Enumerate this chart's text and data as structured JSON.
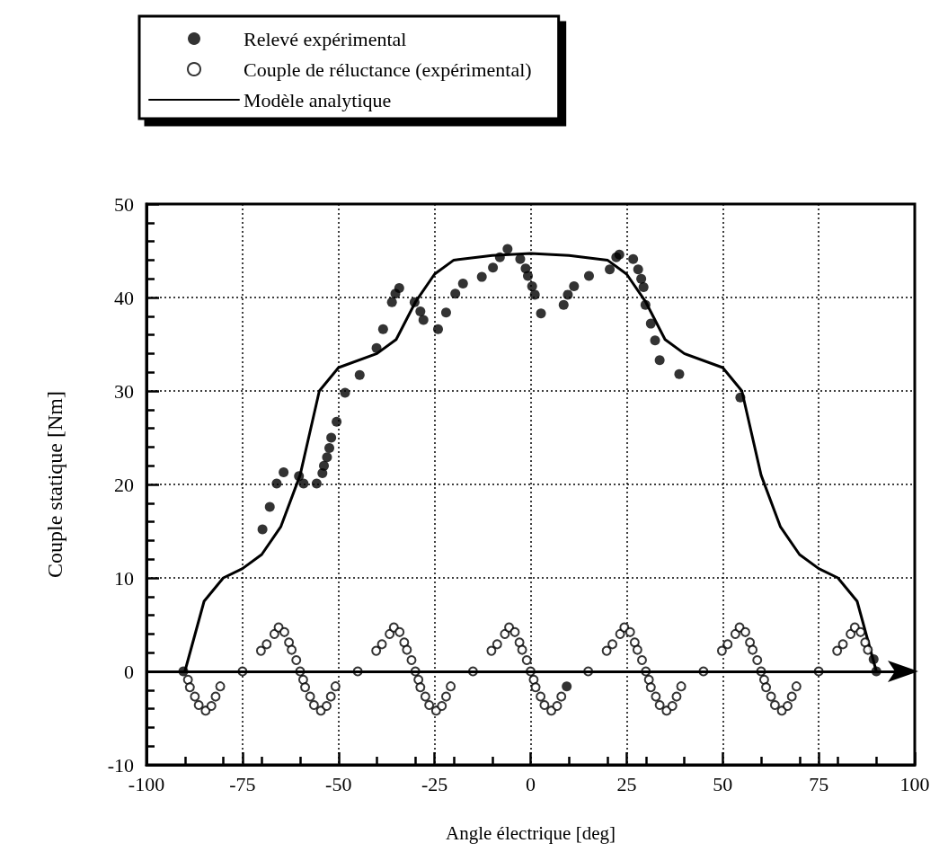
{
  "chart_data": {
    "type": "scatter",
    "xlabel": "Angle électrique [deg]",
    "ylabel": "Couple statique [Nm]",
    "xlim": [
      -100,
      100
    ],
    "xticks": [
      -100,
      -75,
      -50,
      -25,
      0,
      25,
      50,
      75,
      100
    ],
    "ylim": [
      -10,
      50
    ],
    "yticks": [
      -10,
      0,
      10,
      20,
      30,
      40,
      50
    ],
    "grid": true,
    "legend": "top left",
    "ref_lines": [
      {
        "axis": "y",
        "value": 0,
        "color": "#000000",
        "line_style": "solid"
      }
    ],
    "series": [
      {
        "name": "Relevé expérimental",
        "type": "scatter",
        "marker": "circle",
        "color": "#000000",
        "x": [
          -90.4,
          -69.8,
          -67.9,
          -66.1,
          -64.3,
          -60.3,
          -59.1,
          -55.7,
          -54.2,
          -53.8,
          -53.0,
          -52.4,
          -51.9,
          -50.5,
          -48.3,
          -44.5,
          -40.1,
          -38.4,
          -36.1,
          -35.2,
          -34.2,
          -30.2,
          -28.7,
          -27.9,
          -24.1,
          -22.0,
          -19.6,
          -17.6,
          -12.7,
          -9.8,
          -8.0,
          -6.0,
          -2.7,
          -1.3,
          -0.7,
          0.4,
          1.1,
          2.7,
          8.6,
          9.7,
          11.3,
          15.2,
          20.6,
          22.3,
          23.1,
          26.7,
          28.0,
          28.8,
          29.4,
          29.9,
          31.3,
          32.4,
          33.6,
          38.7,
          54.6,
          9.4,
          89.3,
          90.0
        ],
        "values": [
          0,
          15.2,
          17.6,
          20.1,
          21.3,
          20.9,
          20.1,
          20.1,
          21.2,
          22.0,
          22.9,
          23.9,
          25.0,
          26.7,
          29.8,
          31.7,
          34.6,
          36.6,
          39.5,
          40.4,
          41.0,
          39.5,
          38.5,
          37.6,
          36.6,
          38.4,
          40.4,
          41.5,
          42.2,
          43.2,
          44.3,
          45.2,
          44.1,
          43.1,
          42.3,
          41.2,
          40.3,
          38.3,
          39.2,
          40.3,
          41.2,
          42.3,
          43.0,
          44.3,
          44.6,
          44.1,
          43.0,
          42.0,
          41.1,
          39.2,
          37.2,
          35.4,
          33.3,
          31.8,
          29.3,
          -1.6,
          1.3,
          0
        ]
      },
      {
        "name": "Couple de réluctance (expérimental)",
        "type": "scatter",
        "marker": "open circle",
        "color": "#000000",
        "x": [
          -89.2,
          -88.7,
          -87.4,
          -86.4,
          -84.6,
          -83.1,
          -82.0,
          -80.8,
          -75,
          -70.2,
          -68.7,
          -66.7,
          -65.6,
          -64.1,
          -62.9,
          -62.2,
          -61,
          -60,
          -59.2,
          -58.7,
          -57.4,
          -56.4,
          -54.6,
          -53.1,
          -52.0,
          -50.8,
          -45,
          -40.2,
          -38.7,
          -36.7,
          -35.6,
          -34.1,
          -32.9,
          -32.2,
          -31,
          -30,
          -29.2,
          -28.7,
          -27.4,
          -26.4,
          -24.6,
          -23.1,
          -22.0,
          -20.8,
          -15,
          -10.2,
          -8.7,
          -6.7,
          -5.6,
          -4.1,
          -2.9,
          -2.2,
          -1,
          0,
          0.8,
          1.3,
          2.6,
          3.6,
          5.4,
          6.9,
          8.0,
          15,
          19.8,
          21.3,
          23.3,
          24.4,
          25.9,
          27.1,
          27.8,
          29,
          30,
          30.8,
          31.3,
          32.6,
          33.6,
          35.4,
          36.9,
          38.0,
          39.2,
          45,
          49.8,
          51.3,
          53.3,
          54.4,
          55.9,
          57.1,
          57.8,
          59,
          60,
          60.8,
          61.3,
          62.6,
          63.6,
          65.4,
          66.9,
          68.0,
          69.2,
          75,
          79.8,
          81.3,
          83.3,
          84.4,
          85.9,
          87.1,
          87.8
        ],
        "values": [
          -0.9,
          -1.7,
          -2.7,
          -3.6,
          -4.2,
          -3.7,
          -2.7,
          -1.6,
          0,
          2.2,
          2.9,
          4.0,
          4.7,
          4.2,
          3.1,
          2.3,
          1.2,
          0,
          -0.9,
          -1.7,
          -2.7,
          -3.6,
          -4.2,
          -3.7,
          -2.7,
          -1.6,
          0,
          2.2,
          2.9,
          4.0,
          4.7,
          4.2,
          3.1,
          2.3,
          1.2,
          0,
          -0.9,
          -1.7,
          -2.7,
          -3.6,
          -4.2,
          -3.7,
          -2.7,
          -1.6,
          0,
          2.2,
          2.9,
          4.0,
          4.7,
          4.2,
          3.1,
          2.3,
          1.2,
          0,
          -0.9,
          -1.7,
          -2.7,
          -3.6,
          -4.2,
          -3.7,
          -2.7,
          0,
          2.2,
          2.9,
          4.0,
          4.7,
          4.2,
          3.1,
          2.3,
          1.2,
          0,
          -0.9,
          -1.7,
          -2.7,
          -3.6,
          -4.2,
          -3.7,
          -2.7,
          -1.6,
          0,
          2.2,
          2.9,
          4.0,
          4.7,
          4.2,
          3.1,
          2.3,
          1.2,
          0,
          -0.9,
          -1.7,
          -2.7,
          -3.6,
          -4.2,
          -3.7,
          -2.7,
          -1.6,
          0,
          2.2,
          2.9,
          4.0,
          4.7,
          4.2,
          3.1,
          2.3
        ]
      },
      {
        "name": "Modèle analytique",
        "type": "line",
        "marker": "none",
        "line_style": "solid",
        "color": "#000000",
        "x": [
          -90,
          -85,
          -80,
          -75,
          -70,
          -65,
          -60,
          -55,
          -50,
          -40,
          -35,
          -30,
          -25,
          -20,
          -10,
          0,
          10,
          20,
          25,
          30,
          35,
          40,
          50,
          55,
          60,
          65,
          70,
          75,
          80,
          85,
          90
        ],
        "values": [
          0,
          7.5,
          10,
          11,
          12.5,
          15.5,
          21,
          30,
          32.5,
          34,
          35.5,
          39.5,
          42.5,
          44,
          44.5,
          44.7,
          44.5,
          44,
          42.5,
          39.5,
          35.5,
          34,
          32.5,
          30,
          21,
          15.5,
          12.5,
          11,
          10,
          7.5,
          0
        ]
      }
    ]
  }
}
